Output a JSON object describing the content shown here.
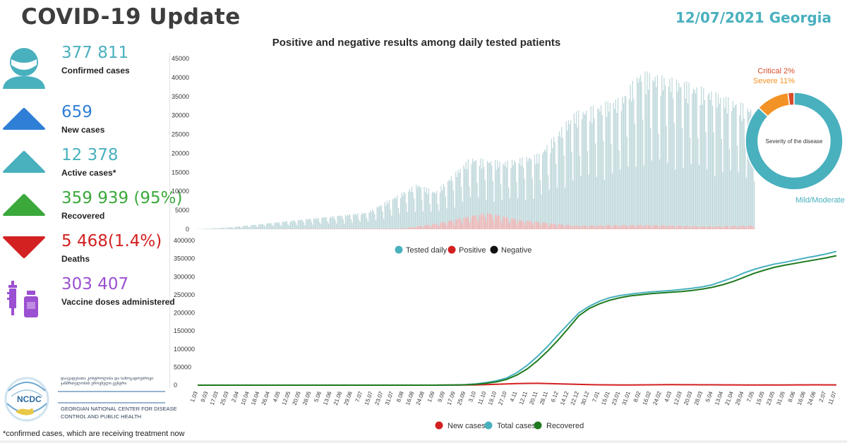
{
  "header": {
    "title": "COVID-19 Update",
    "date_place": "12/07/2021 Georgia"
  },
  "colors": {
    "teal": "#49b0be",
    "blue": "#2f7fd6",
    "green": "#3aa83a",
    "red": "#d32020",
    "purple": "#9b4fd1",
    "orange": "#f39325",
    "critical": "#d64b2a"
  },
  "stats": [
    {
      "value": "377 811",
      "label": "Confirmed cases",
      "icon": "person-mask-icon",
      "color": "#49b0be"
    },
    {
      "value": "659",
      "label": "New cases",
      "icon": "triangle-up-icon",
      "color": "#2f7fd6"
    },
    {
      "value": "12 378",
      "label": "Active cases*",
      "icon": "triangle-up-icon",
      "color": "#49b0be"
    },
    {
      "value": "359 939 (95%)",
      "label": "Recovered",
      "icon": "triangle-up-icon",
      "color": "#3aa83a"
    },
    {
      "value": "5 468(1.4%)",
      "label": "Deaths",
      "icon": "triangle-down-icon",
      "color": "#d32020"
    },
    {
      "value": "303 407",
      "label": "Vaccine doses administered",
      "icon": "syringe-vial-icon",
      "color": "#9b4fd1"
    }
  ],
  "org": {
    "logo_text": "NCDC",
    "name_local": "დაავადებათა კონტროლისა და საზოგადოებრივი ჯანმრთელობის ეროვნული ცენტრი",
    "name_en_1": "GEORGIAN NATIONAL CENTER FOR DISEASE",
    "name_en_2": "CONTROL AND PUBLIC HEALTH"
  },
  "footnote": "*confirmed cases, which are receiving treatment now",
  "chart_data": [
    {
      "type": "bar",
      "title": "Positive and negative results among daily tested patients",
      "ylim": [
        0,
        45000
      ],
      "yticks": [
        0,
        5000,
        10000,
        15000,
        20000,
        25000,
        30000,
        35000,
        40000,
        45000
      ],
      "legend": [
        "Tested daily",
        "Positive",
        "Negative"
      ],
      "legend_colors": [
        "#49b0be",
        "#d32020",
        "#111111"
      ],
      "legend_position": "bottom",
      "approx_daily_tested_envelope": [
        {
          "date": "1.03.2020",
          "value": 0
        },
        {
          "date": "1.04.2020",
          "value": 500
        },
        {
          "date": "1.06.2020",
          "value": 2500
        },
        {
          "date": "1.08.2020",
          "value": 4500
        },
        {
          "date": "15.09.2020",
          "value": 12000
        },
        {
          "date": "1.10.2020",
          "value": 10000
        },
        {
          "date": "1.11.2020",
          "value": 19000
        },
        {
          "date": "1.12.2020",
          "value": 18000
        },
        {
          "date": "1.01.2021",
          "value": 20000
        },
        {
          "date": "1.02.2021",
          "value": 31000
        },
        {
          "date": "15.03.2021",
          "value": 35000
        },
        {
          "date": "1.04.2021",
          "value": 42000
        },
        {
          "date": "1.05.2021",
          "value": 40000
        },
        {
          "date": "1.06.2021",
          "value": 37000
        },
        {
          "date": "11.07.2021",
          "value": 32000
        }
      ],
      "approx_daily_positive_envelope": [
        {
          "date": "1.03.2020",
          "value": 0
        },
        {
          "date": "1.09.2020",
          "value": 200
        },
        {
          "date": "1.10.2020",
          "value": 1500
        },
        {
          "date": "15.11.2020",
          "value": 4500
        },
        {
          "date": "15.12.2020",
          "value": 2500
        },
        {
          "date": "1.02.2021",
          "value": 1000
        },
        {
          "date": "1.04.2021",
          "value": 1200
        },
        {
          "date": "1.06.2021",
          "value": 800
        },
        {
          "date": "11.07.2021",
          "value": 1000
        }
      ]
    },
    {
      "type": "pie",
      "title": "Severity of the disease",
      "slices": [
        {
          "label": "Mild/Moderate 87%",
          "value": 87,
          "color": "#49b0be"
        },
        {
          "label": "Severe 11%",
          "value": 11,
          "color": "#f39325"
        },
        {
          "label": "Critical 2%",
          "value": 2,
          "color": "#d64b2a"
        }
      ]
    },
    {
      "type": "line",
      "ylim": [
        0,
        400000
      ],
      "yticks": [
        0,
        50000,
        100000,
        150000,
        200000,
        250000,
        300000,
        350000,
        400000
      ],
      "xtick_labels": [
        "1.03",
        "9.03",
        "17.03",
        "25.03",
        "2.04",
        "10.04",
        "18.04",
        "26.04",
        "4.05",
        "12.05",
        "20.05",
        "28.05",
        "5.06",
        "13.06",
        "21.06",
        "29.06",
        "7.07",
        "15.07",
        "23.07",
        "31.07",
        "8.08",
        "16.08",
        "24.08",
        "1.09",
        "9.09",
        "17.09",
        "25.09",
        "3.10",
        "11.10",
        "19.10",
        "27.10",
        "4.11",
        "12.11",
        "20.11",
        "28.11",
        "6.12",
        "14.12",
        "22.12",
        "30.12",
        "7.01",
        "15.01",
        "23.01",
        "31.01",
        "8.02",
        "16.02",
        "24.02",
        "4.03",
        "12.03",
        "20.03",
        "28.03",
        "5.04",
        "13.04",
        "21.04",
        "29.04",
        "7.05",
        "15.05",
        "23.05",
        "31.05",
        "8.06",
        "16.06",
        "24.06",
        "2.07",
        "11.07"
      ],
      "legend": [
        "New cases",
        "Total cases",
        "Recovered"
      ],
      "legend_position": "bottom",
      "series": [
        {
          "name": "Total cases",
          "color": "#49b0be",
          "values": [
            0,
            0,
            0,
            0,
            0,
            0,
            0,
            0,
            0,
            0,
            0,
            0,
            0,
            0,
            0,
            0,
            0,
            0,
            0,
            0,
            0,
            0,
            0,
            0,
            200,
            500,
            1500,
            3500,
            7000,
            12000,
            20000,
            35000,
            55000,
            80000,
            108000,
            140000,
            170000,
            200000,
            218000,
            232000,
            242000,
            248000,
            252000,
            255000,
            258000,
            260000,
            262000,
            265000,
            268000,
            272000,
            278000,
            288000,
            298000,
            310000,
            320000,
            328000,
            335000,
            340000,
            346000,
            352000,
            357000,
            363000,
            370000
          ]
        },
        {
          "name": "Recovered",
          "color": "#1e7a1e",
          "values": [
            0,
            0,
            0,
            0,
            0,
            0,
            0,
            0,
            0,
            0,
            0,
            0,
            0,
            0,
            0,
            0,
            0,
            0,
            0,
            0,
            0,
            0,
            0,
            0,
            100,
            300,
            1000,
            2500,
            5000,
            9000,
            16000,
            28000,
            45000,
            68000,
            95000,
            125000,
            158000,
            192000,
            212000,
            225000,
            235000,
            242000,
            247000,
            250000,
            253000,
            255000,
            257000,
            259000,
            262000,
            266000,
            271000,
            278000,
            287000,
            298000,
            309000,
            318000,
            326000,
            332000,
            337000,
            342000,
            347000,
            352000,
            358000
          ]
        },
        {
          "name": "New cases",
          "color": "#d32020",
          "values": [
            0,
            0,
            0,
            0,
            0,
            0,
            0,
            0,
            0,
            0,
            0,
            0,
            0,
            0,
            0,
            0,
            0,
            0,
            0,
            0,
            0,
            0,
            0,
            0,
            100,
            200,
            400,
            800,
            1500,
            2500,
            3500,
            4200,
            4800,
            5000,
            4500,
            3800,
            3000,
            2200,
            1500,
            1000,
            700,
            600,
            600,
            700,
            900,
            1100,
            1300,
            1200,
            1100,
            1000,
            900,
            800,
            700,
            600,
            500,
            500,
            500,
            600,
            700,
            800,
            900,
            800,
            700
          ]
        }
      ]
    }
  ]
}
